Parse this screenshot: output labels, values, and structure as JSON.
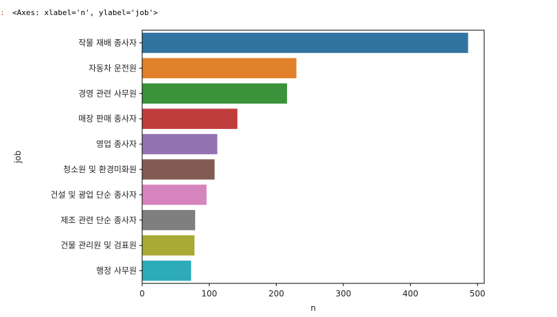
{
  "output": {
    "prompt_marker": ":",
    "repr_text": "<Axes: xlabel='n', ylabel='job'>"
  },
  "chart_data": {
    "type": "bar",
    "orientation": "horizontal",
    "categories": [
      "작물 재배 종사자",
      "자동차 운전원",
      "경영 관련 사무원",
      "매장 판매 종사자",
      "영업 종사자",
      "청소원 및 환경미화원",
      "건설 및 광업 단순 종사자",
      "제조 관련 단순 종사자",
      "건물 관리원 및 검표원",
      "행정 사무원"
    ],
    "values": [
      486,
      230,
      216,
      142,
      112,
      108,
      96,
      79,
      78,
      73
    ],
    "colors": [
      "#3274a1",
      "#e1812c",
      "#3a923a",
      "#c03d3e",
      "#9372b2",
      "#845b53",
      "#d684bd",
      "#7f7f7f",
      "#a9aa35",
      "#2eabb8"
    ],
    "xlabel": "n",
    "ylabel": "job",
    "xlim": [
      0,
      510
    ],
    "xticks": [
      0,
      100,
      200,
      300,
      400,
      500
    ],
    "grid": false
  }
}
